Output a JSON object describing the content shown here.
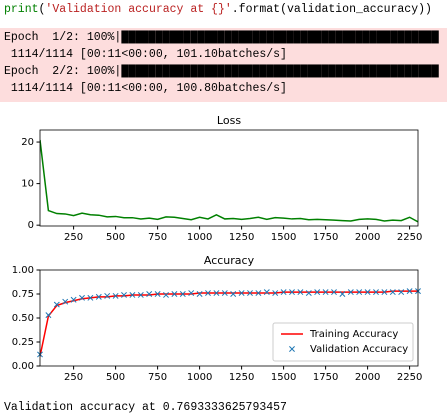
{
  "code": "print('Validation accuracy at {}'.format(validation_accuracy))",
  "stderr": [
    "Epoch  1/2: 100%|██████████████████████████████████████████████",
    " 1114/1114 [00:11<00:00, 101.10batches/s]",
    "Epoch  2/2: 100%|██████████████████████████████████████████████",
    " 1114/1114 [00:11<00:00, 100.80batches/s]"
  ],
  "chart_data": [
    {
      "type": "line",
      "title": "Loss",
      "x": [
        50,
        100,
        150,
        200,
        250,
        300,
        350,
        400,
        450,
        500,
        550,
        600,
        650,
        700,
        750,
        800,
        850,
        900,
        950,
        1000,
        1050,
        1100,
        1150,
        1200,
        1250,
        1300,
        1350,
        1400,
        1450,
        1500,
        1550,
        1600,
        1650,
        1700,
        1750,
        1800,
        1850,
        1900,
        1950,
        2000,
        2050,
        2100,
        2150,
        2200,
        2250,
        2300
      ],
      "series": [
        {
          "color": "#008000",
          "values": [
            20.5,
            3.5,
            2.8,
            2.7,
            2.3,
            2.9,
            2.5,
            2.4,
            2.0,
            2.1,
            1.8,
            1.8,
            1.5,
            1.7,
            1.4,
            2.0,
            1.9,
            1.6,
            1.3,
            1.9,
            1.5,
            2.5,
            1.5,
            1.6,
            1.4,
            1.6,
            1.9,
            1.4,
            1.8,
            1.7,
            1.5,
            1.6,
            1.3,
            1.4,
            1.3,
            1.2,
            1.1,
            1.0,
            1.4,
            1.5,
            1.4,
            1.0,
            1.2,
            1.1,
            1.9,
            0.8
          ]
        }
      ],
      "xlim": [
        50,
        2300
      ],
      "ylim": [
        -0.2,
        22.9
      ],
      "xticks": [
        250,
        500,
        750,
        1000,
        1250,
        1500,
        1750,
        2000,
        2250
      ],
      "yticks": [
        0,
        10,
        20
      ]
    },
    {
      "type": "line",
      "title": "Accuracy",
      "x": [
        50,
        100,
        150,
        200,
        250,
        300,
        350,
        400,
        450,
        500,
        550,
        600,
        650,
        700,
        750,
        800,
        850,
        900,
        950,
        1000,
        1050,
        1100,
        1150,
        1200,
        1250,
        1300,
        1350,
        1400,
        1450,
        1500,
        1550,
        1600,
        1650,
        1700,
        1750,
        1800,
        1850,
        1900,
        1950,
        2000,
        2050,
        2100,
        2150,
        2200,
        2250,
        2300
      ],
      "series": [
        {
          "name": "Training Accuracy",
          "color": "#ff0000",
          "marker": "none",
          "values": [
            0.1,
            0.52,
            0.63,
            0.66,
            0.68,
            0.7,
            0.71,
            0.72,
            0.72,
            0.73,
            0.73,
            0.74,
            0.74,
            0.74,
            0.75,
            0.75,
            0.75,
            0.75,
            0.75,
            0.76,
            0.76,
            0.76,
            0.76,
            0.76,
            0.76,
            0.76,
            0.76,
            0.76,
            0.76,
            0.77,
            0.77,
            0.77,
            0.77,
            0.77,
            0.77,
            0.77,
            0.77,
            0.77,
            0.77,
            0.77,
            0.77,
            0.77,
            0.78,
            0.78,
            0.78,
            0.78
          ]
        },
        {
          "name": "Validation Accuracy",
          "color": "#1f77b4",
          "marker": "x",
          "values": [
            0.12,
            0.53,
            0.64,
            0.67,
            0.69,
            0.71,
            0.71,
            0.72,
            0.73,
            0.73,
            0.74,
            0.74,
            0.74,
            0.75,
            0.75,
            0.74,
            0.75,
            0.75,
            0.76,
            0.75,
            0.76,
            0.76,
            0.76,
            0.75,
            0.76,
            0.76,
            0.76,
            0.77,
            0.76,
            0.77,
            0.77,
            0.77,
            0.76,
            0.77,
            0.77,
            0.77,
            0.75,
            0.77,
            0.77,
            0.77,
            0.77,
            0.77,
            0.77,
            0.77,
            0.78,
            0.78
          ]
        }
      ],
      "xlim": [
        50,
        2300
      ],
      "ylim": [
        0,
        1
      ],
      "xticks": [
        250,
        500,
        750,
        1000,
        1250,
        1500,
        1750,
        2000,
        2250
      ],
      "yticks": [
        {
          "value": 0,
          "label": "0.00"
        },
        {
          "value": 0.25,
          "label": "0.25"
        },
        {
          "value": 0.5,
          "label": "0.50"
        },
        {
          "value": 0.75,
          "label": "0.75"
        },
        {
          "value": 1,
          "label": "1.00"
        }
      ],
      "legend": "lower right"
    }
  ],
  "output": "Validation accuracy at 0.7693333625793457"
}
